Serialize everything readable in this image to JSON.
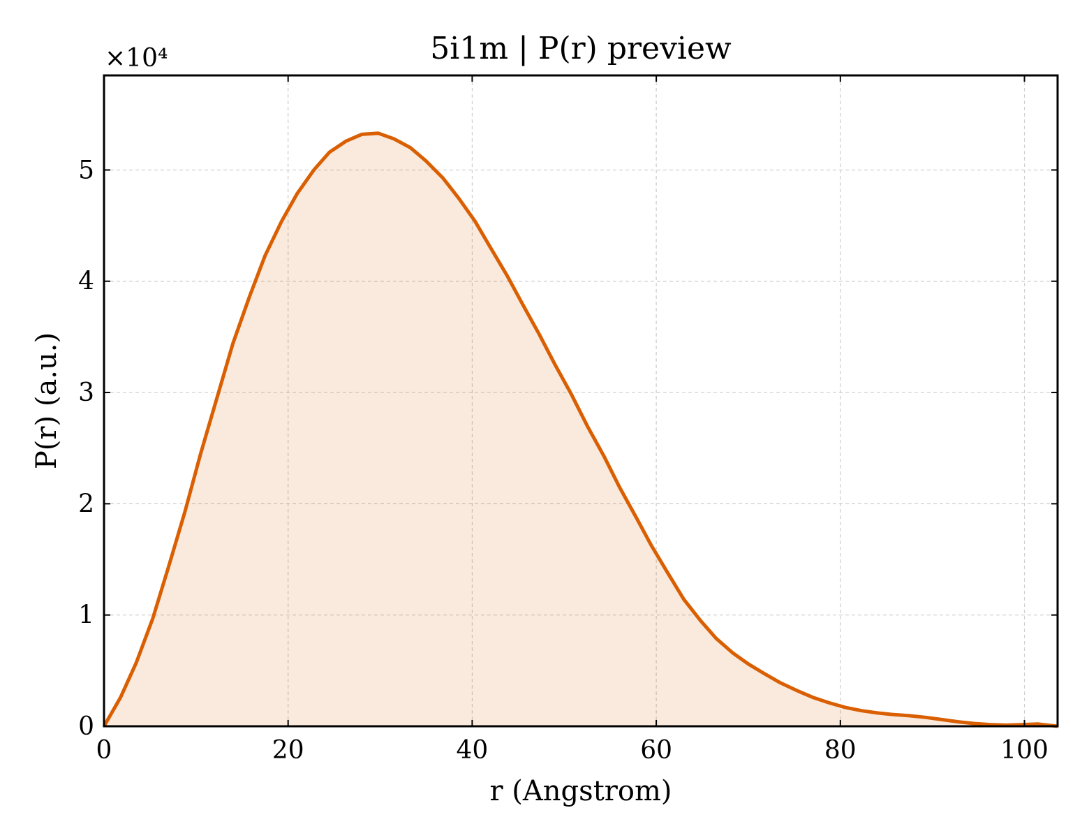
{
  "chart_data": {
    "type": "area",
    "title": "5i1m | P(r) preview",
    "xlabel": "r (Angstrom)",
    "ylabel": "P(r) (a.u.)",
    "y_multiplier": "×10⁴",
    "xlim": [
      0,
      103.6
    ],
    "ylim": [
      0,
      58500
    ],
    "xticks": [
      0,
      20,
      40,
      60,
      80,
      100
    ],
    "xtick_labels": [
      "0",
      "20",
      "40",
      "60",
      "80",
      "100"
    ],
    "yticks": [
      0,
      10000,
      20000,
      30000,
      40000,
      50000
    ],
    "ytick_labels": [
      "0",
      "1",
      "2",
      "3",
      "4",
      "5"
    ],
    "grid": true,
    "series": [
      {
        "color": "#d95f02",
        "fill_color": "#d95f02",
        "fill_opacity": 0.13,
        "x": [
          0,
          1.8,
          3.5,
          5.3,
          7.0,
          8.8,
          10.5,
          12.3,
          14.0,
          15.8,
          17.5,
          19.3,
          21.0,
          22.8,
          24.5,
          26.3,
          28.0,
          29.8,
          31.5,
          33.3,
          35.0,
          36.8,
          38.5,
          40.3,
          42.0,
          43.8,
          45.5,
          47.3,
          49.0,
          50.8,
          52.5,
          54.3,
          56.0,
          57.8,
          59.5,
          61.3,
          63.0,
          64.8,
          66.5,
          68.3,
          70.0,
          71.8,
          73.5,
          75.3,
          77.0,
          78.8,
          80.5,
          82.3,
          84.0,
          85.8,
          87.5,
          89.3,
          91.0,
          92.8,
          94.5,
          96.3,
          98.0,
          99.8,
          101.5,
          103.6
        ],
        "y": [
          0,
          2600,
          5700,
          9700,
          14300,
          19300,
          24500,
          29600,
          34400,
          38600,
          42300,
          45400,
          47900,
          50000,
          51600,
          52600,
          53200,
          53300,
          52800,
          52000,
          50800,
          49300,
          47500,
          45400,
          43000,
          40500,
          37900,
          35200,
          32500,
          29800,
          27000,
          24300,
          21500,
          18800,
          16200,
          13700,
          11400,
          9500,
          7900,
          6600,
          5600,
          4700,
          3900,
          3200,
          2600,
          2100,
          1700,
          1400,
          1200,
          1050,
          950,
          800,
          600,
          400,
          250,
          150,
          100,
          150,
          200,
          0
        ]
      }
    ]
  }
}
